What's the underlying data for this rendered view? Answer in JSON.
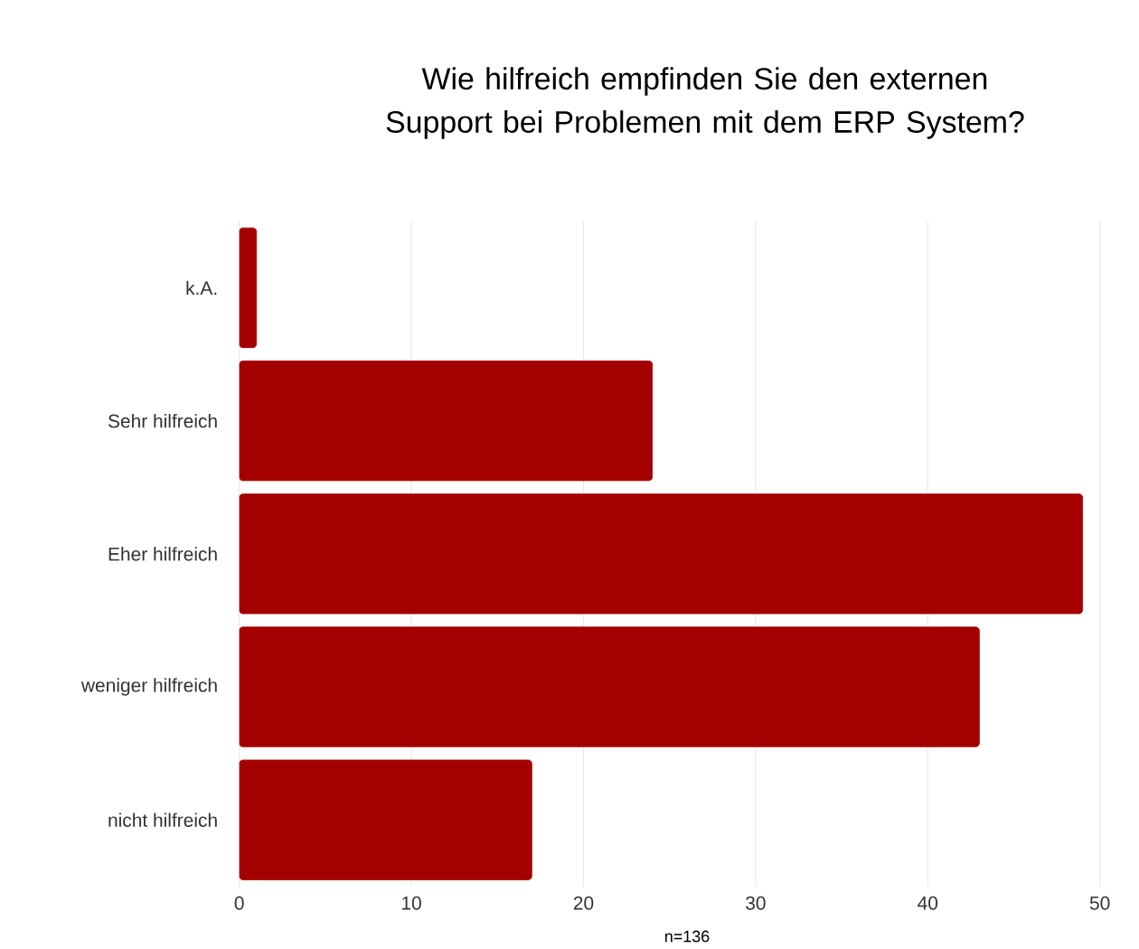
{
  "chart_data": {
    "type": "bar",
    "orientation": "horizontal",
    "title": "Wie hilfreich empfinden Sie den externen Support bei Problemen mit dem ERP System?",
    "categories": [
      "k.A.",
      "Sehr hilfreich",
      "Eher hilfreich",
      "weniger hilfreich",
      "nicht hilfreich"
    ],
    "values": [
      1,
      24,
      49,
      43,
      17
    ],
    "color": "#a50000",
    "xlim": [
      0,
      50
    ],
    "xticks": [
      0,
      10,
      20,
      30,
      40,
      50
    ],
    "grid": "x",
    "annotations": [
      "n=136"
    ]
  }
}
